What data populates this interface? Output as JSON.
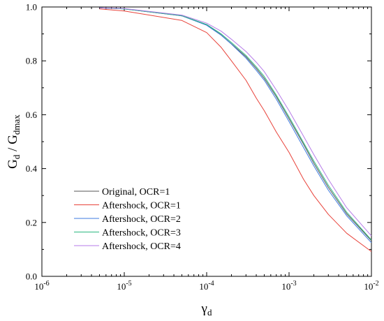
{
  "chart_data": {
    "type": "line",
    "title": "",
    "xlabel": {
      "main": "γ",
      "sub": "d"
    },
    "ylabel": {
      "num_main": "G",
      "num_sub": "d",
      "sep": " / ",
      "den_main": "G",
      "den_sub": "dmax"
    },
    "x_scale": "log",
    "xlim": [
      1e-06,
      0.01
    ],
    "ylim": [
      0.0,
      1.0
    ],
    "x_ticks": [
      {
        "value": 1e-06,
        "base": "10",
        "exp": "-6"
      },
      {
        "value": 1e-05,
        "base": "10",
        "exp": "-5"
      },
      {
        "value": 0.0001,
        "base": "10",
        "exp": "-4"
      },
      {
        "value": 0.001,
        "base": "10",
        "exp": "-3"
      },
      {
        "value": 0.01,
        "base": "10",
        "exp": "-2"
      }
    ],
    "y_ticks": [
      {
        "value": 0.0,
        "label": "0.0"
      },
      {
        "value": 0.2,
        "label": "0.2"
      },
      {
        "value": 0.4,
        "label": "0.4"
      },
      {
        "value": 0.6,
        "label": "0.6"
      },
      {
        "value": 0.8,
        "label": "0.8"
      },
      {
        "value": 1.0,
        "label": "1.0"
      }
    ],
    "grid": false,
    "legend_position": "lower-left",
    "x": [
      5e-06,
      1e-05,
      5e-05,
      0.0001,
      0.00015,
      0.0002,
      0.0003,
      0.0004,
      0.0005,
      0.0007,
      0.001,
      0.0015,
      0.002,
      0.003,
      0.005,
      0.01
    ],
    "series": [
      {
        "name": "Original, OCR=1",
        "color": "#555555",
        "values": [
          0.997,
          0.993,
          0.967,
          0.933,
          0.896,
          0.863,
          0.815,
          0.772,
          0.735,
          0.667,
          0.585,
          0.49,
          0.42,
          0.33,
          0.232,
          0.132
        ]
      },
      {
        "name": "Aftershock, OCR=1",
        "color": "#e8423a",
        "values": [
          0.993,
          0.985,
          0.95,
          0.905,
          0.85,
          0.8,
          0.728,
          0.662,
          0.615,
          0.536,
          0.46,
          0.36,
          0.3,
          0.23,
          0.16,
          0.092
        ]
      },
      {
        "name": "Aftershock, OCR=2",
        "color": "#3d7be0",
        "values": [
          0.997,
          0.993,
          0.967,
          0.932,
          0.895,
          0.862,
          0.81,
          0.765,
          0.728,
          0.658,
          0.575,
          0.478,
          0.41,
          0.32,
          0.225,
          0.125
        ]
      },
      {
        "name": "Aftershock, OCR=3",
        "color": "#2bb880",
        "values": [
          0.997,
          0.993,
          0.968,
          0.935,
          0.9,
          0.868,
          0.82,
          0.778,
          0.742,
          0.673,
          0.592,
          0.496,
          0.428,
          0.338,
          0.238,
          0.135
        ]
      },
      {
        "name": "Aftershock, OCR=4",
        "color": "#b57be8",
        "values": [
          0.997,
          0.994,
          0.97,
          0.94,
          0.91,
          0.88,
          0.835,
          0.795,
          0.76,
          0.692,
          0.615,
          0.52,
          0.452,
          0.36,
          0.255,
          0.15
        ]
      }
    ]
  }
}
